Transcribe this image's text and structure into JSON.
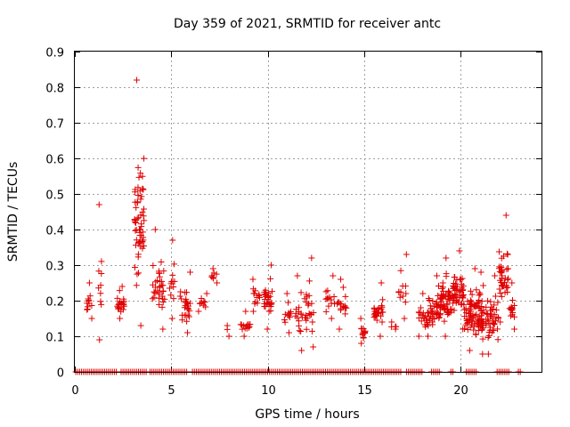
{
  "chart_data": {
    "type": "scatter",
    "title": "Day 359 of 2021, SRMTID for receiver antc",
    "xlabel": "GPS time / hours",
    "ylabel": "SRMTID / TECUs",
    "xlim": [
      0,
      24.2
    ],
    "ylim": [
      0,
      0.9
    ],
    "x_ticks": [
      0,
      5,
      10,
      15,
      20
    ],
    "y_ticks": [
      0,
      0.1,
      0.2,
      0.3,
      0.4,
      0.5,
      0.6,
      0.7,
      0.8,
      0.9
    ],
    "grid": true,
    "marker": "+",
    "color": "#e00000",
    "clusters": [
      {
        "x": [
          0.6,
          0.9
        ],
        "y": [
          0.15,
          0.25
        ],
        "n": 12
      },
      {
        "x": [
          1.2,
          1.4
        ],
        "y": [
          0.09,
          0.47
        ],
        "n": 10
      },
      {
        "x": [
          2.2,
          2.6
        ],
        "y": [
          0.15,
          0.24
        ],
        "n": 22
      },
      {
        "x": [
          3.1,
          3.6
        ],
        "y": [
          0.13,
          0.82
        ],
        "n": 60
      },
      {
        "x": [
          4.0,
          4.7
        ],
        "y": [
          0.12,
          0.4
        ],
        "n": 35
      },
      {
        "x": [
          4.9,
          5.2
        ],
        "y": [
          0.15,
          0.37
        ],
        "n": 12
      },
      {
        "x": [
          5.4,
          6.0
        ],
        "y": [
          0.11,
          0.28
        ],
        "n": 28
      },
      {
        "x": [
          6.4,
          6.9
        ],
        "y": [
          0.17,
          0.22
        ],
        "n": 10
      },
      {
        "x": [
          7.1,
          7.4
        ],
        "y": [
          0.25,
          0.29
        ],
        "n": 8
      },
      {
        "x": [
          7.9,
          8.1
        ],
        "y": [
          0.1,
          0.13
        ],
        "n": 3
      },
      {
        "x": [
          8.6,
          9.1
        ],
        "y": [
          0.1,
          0.17
        ],
        "n": 14
      },
      {
        "x": [
          9.2,
          9.6
        ],
        "y": [
          0.17,
          0.26
        ],
        "n": 14
      },
      {
        "x": [
          9.8,
          10.3
        ],
        "y": [
          0.12,
          0.3
        ],
        "n": 30
      },
      {
        "x": [
          10.8,
          11.2
        ],
        "y": [
          0.11,
          0.22
        ],
        "n": 12
      },
      {
        "x": [
          11.4,
          11.8
        ],
        "y": [
          0.06,
          0.27
        ],
        "n": 16
      },
      {
        "x": [
          11.9,
          12.4
        ],
        "y": [
          0.07,
          0.32
        ],
        "n": 22
      },
      {
        "x": [
          13.0,
          13.5
        ],
        "y": [
          0.15,
          0.27
        ],
        "n": 14
      },
      {
        "x": [
          13.6,
          14.1
        ],
        "y": [
          0.12,
          0.26
        ],
        "n": 18
      },
      {
        "x": [
          14.8,
          15.1
        ],
        "y": [
          0.08,
          0.15
        ],
        "n": 14
      },
      {
        "x": [
          15.5,
          16.0
        ],
        "y": [
          0.1,
          0.25
        ],
        "n": 28
      },
      {
        "x": [
          16.4,
          16.7
        ],
        "y": [
          0.12,
          0.14
        ],
        "n": 5
      },
      {
        "x": [
          16.8,
          17.2
        ],
        "y": [
          0.15,
          0.33
        ],
        "n": 12
      },
      {
        "x": [
          17.8,
          18.3
        ],
        "y": [
          0.1,
          0.22
        ],
        "n": 20
      },
      {
        "x": [
          18.3,
          19.0
        ],
        "y": [
          0.1,
          0.27
        ],
        "n": 45
      },
      {
        "x": [
          19.0,
          19.6
        ],
        "y": [
          0.1,
          0.32
        ],
        "n": 50
      },
      {
        "x": [
          19.6,
          20.2
        ],
        "y": [
          0.12,
          0.34
        ],
        "n": 50
      },
      {
        "x": [
          20.2,
          20.8
        ],
        "y": [
          0.06,
          0.29
        ],
        "n": 50
      },
      {
        "x": [
          20.8,
          21.4
        ],
        "y": [
          0.05,
          0.28
        ],
        "n": 50
      },
      {
        "x": [
          21.4,
          22.0
        ],
        "y": [
          0.05,
          0.27
        ],
        "n": 40
      },
      {
        "x": [
          22.0,
          22.5
        ],
        "y": [
          0.14,
          0.44
        ],
        "n": 40
      },
      {
        "x": [
          22.5,
          22.8
        ],
        "y": [
          0.12,
          0.25
        ],
        "n": 15
      }
    ],
    "zero_baseline": {
      "y": 0,
      "segments": [
        [
          0.05,
          2.2
        ],
        [
          2.4,
          3.7
        ],
        [
          3.9,
          5.8
        ],
        [
          6.1,
          8.8
        ],
        [
          8.9,
          16.9
        ],
        [
          17.2,
          18.0
        ],
        [
          18.5,
          18.9
        ],
        [
          19.5,
          19.6
        ],
        [
          20.3,
          20.8
        ],
        [
          21.9,
          22.5
        ],
        [
          23.0,
          23.1
        ]
      ]
    }
  }
}
